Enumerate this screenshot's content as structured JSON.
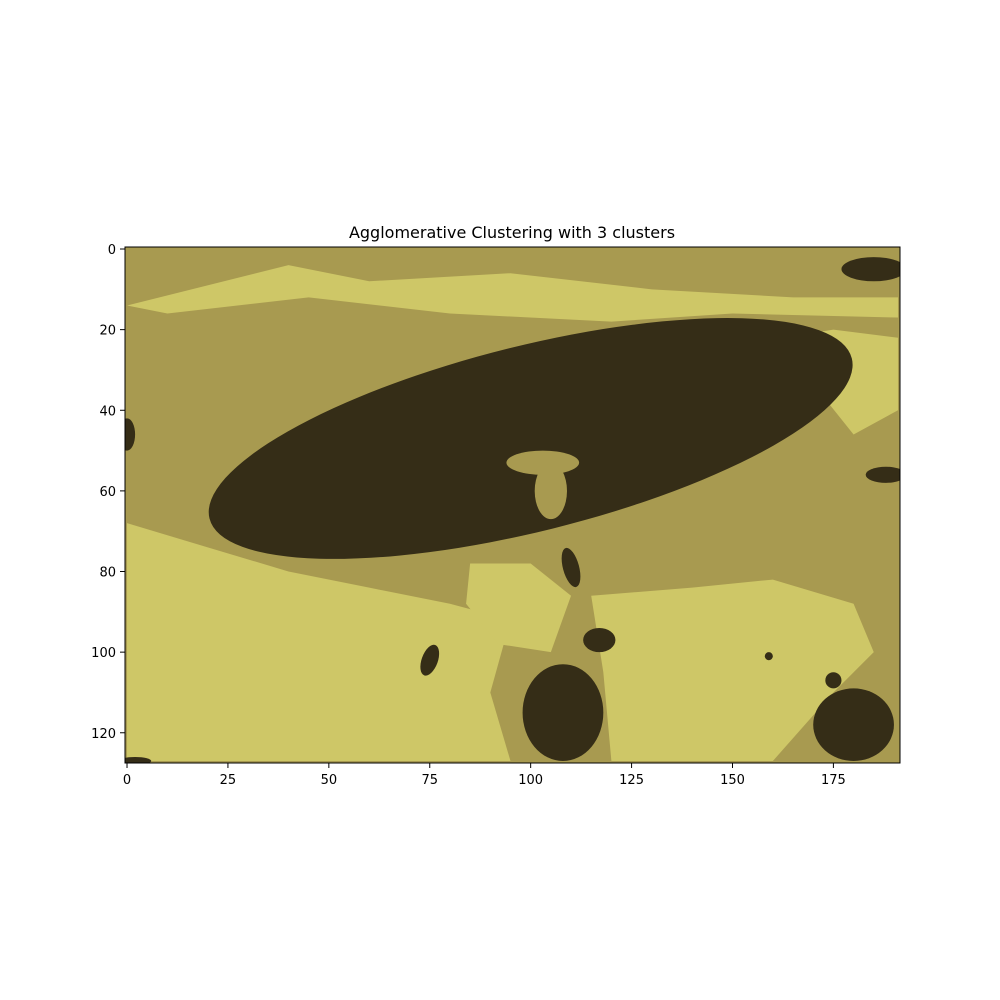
{
  "chart_data": {
    "type": "heatmap",
    "title": "Agglomerative Clustering with 3 clusters",
    "xlabel": "",
    "ylabel": "",
    "xlim": [
      -0.5,
      191.5
    ],
    "ylim": [
      127.5,
      -0.5
    ],
    "image_size": {
      "columns": 192,
      "rows": 128
    },
    "x_ticks": [
      0,
      25,
      50,
      75,
      100,
      125,
      150,
      175
    ],
    "y_ticks": [
      0,
      20,
      40,
      60,
      80,
      100,
      120
    ],
    "grid": false,
    "legend": "none",
    "clusters": [
      {
        "id": 0,
        "color": "#a89a50"
      },
      {
        "id": 1,
        "color": "#cec767"
      },
      {
        "id": 2,
        "color": "#352d17"
      }
    ],
    "regions": [
      {
        "cluster": 2,
        "shape": "ellipse",
        "center": [
          100,
          47
        ],
        "radii": [
          82,
          23
        ],
        "rotation_deg": -14
      },
      {
        "cluster": 0,
        "shape": "ellipse",
        "center": [
          103,
          53
        ],
        "radii": [
          9,
          3
        ],
        "rotation_deg": 0
      },
      {
        "cluster": 0,
        "shape": "ellipse",
        "center": [
          105,
          60
        ],
        "radii": [
          4,
          7
        ],
        "rotation_deg": 0
      },
      {
        "cluster": 2,
        "shape": "ellipse",
        "center": [
          185,
          5
        ],
        "radii": [
          8,
          3
        ],
        "rotation_deg": 0
      },
      {
        "cluster": 2,
        "shape": "ellipse",
        "center": [
          188,
          56
        ],
        "radii": [
          5,
          2
        ],
        "rotation_deg": 0
      },
      {
        "cluster": 2,
        "shape": "ellipse",
        "center": [
          0,
          46
        ],
        "radii": [
          2,
          4
        ],
        "rotation_deg": 0
      },
      {
        "cluster": 2,
        "shape": "ellipse",
        "center": [
          110,
          79
        ],
        "radii": [
          2,
          5
        ],
        "rotation_deg": -15
      },
      {
        "cluster": 2,
        "shape": "ellipse",
        "center": [
          117,
          97
        ],
        "radii": [
          4,
          3
        ],
        "rotation_deg": 0
      },
      {
        "cluster": 2,
        "shape": "ellipse",
        "center": [
          75,
          102
        ],
        "radii": [
          2,
          4
        ],
        "rotation_deg": 20
      },
      {
        "cluster": 2,
        "shape": "ellipse",
        "center": [
          108,
          115
        ],
        "radii": [
          10,
          12
        ],
        "rotation_deg": 0
      },
      {
        "cluster": 2,
        "shape": "ellipse",
        "center": [
          180,
          118
        ],
        "radii": [
          10,
          9
        ],
        "rotation_deg": 0
      },
      {
        "cluster": 2,
        "shape": "ellipse",
        "center": [
          159,
          101
        ],
        "radii": [
          1,
          1
        ],
        "rotation_deg": 0
      },
      {
        "cluster": 2,
        "shape": "ellipse",
        "center": [
          175,
          107
        ],
        "radii": [
          2,
          2
        ],
        "rotation_deg": 0
      },
      {
        "cluster": 2,
        "shape": "ellipse",
        "center": [
          2,
          127
        ],
        "radii": [
          4,
          1
        ],
        "rotation_deg": 0
      }
    ]
  }
}
